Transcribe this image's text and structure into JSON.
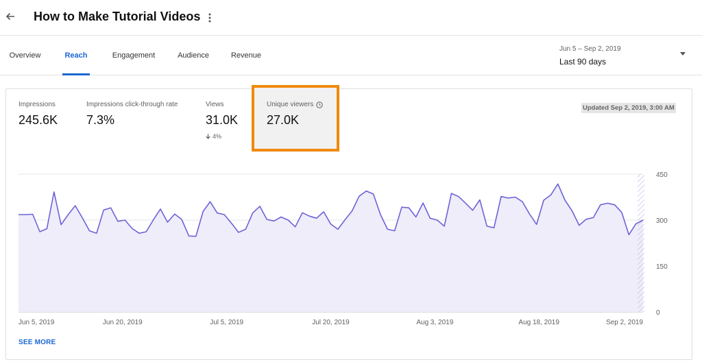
{
  "header": {
    "back_icon": "arrow-back-icon",
    "title": "How to Make Tutorial Videos",
    "more_icon": "more-vert-icon"
  },
  "tabs": [
    {
      "label": "Overview",
      "active": false
    },
    {
      "label": "Reach",
      "active": true
    },
    {
      "label": "Engagement",
      "active": false
    },
    {
      "label": "Audience",
      "active": false
    },
    {
      "label": "Revenue",
      "active": false
    }
  ],
  "date_selector": {
    "range": "Jun 5 – Sep 2, 2019",
    "label": "Last 90 days"
  },
  "metrics": [
    {
      "label": "Impressions",
      "value": "245.6K"
    },
    {
      "label": "Impressions click-through rate",
      "value": "7.3%"
    },
    {
      "label": "Views",
      "value": "31.0K",
      "change": "4%"
    },
    {
      "label": "Unique viewers",
      "value": "27.0K",
      "icon": "clock-icon"
    }
  ],
  "updated": "Updated Sep 2, 2019, 3:00 AM",
  "see_more": "SEE MORE",
  "colors": {
    "accent": "#1a67d2",
    "line": "#6c63d8",
    "fill": "#eeedf9",
    "highlight": "#f08a0c"
  },
  "chart_data": {
    "type": "area",
    "x_tick_labels": [
      "Jun 5, 2019",
      "Jun 20, 2019",
      "Jul 5, 2019",
      "Jul 20, 2019",
      "Aug 3, 2019",
      "Aug 18, 2019",
      "Sep 2, 2019"
    ],
    "y_tick_labels": [
      "450",
      "300",
      "150",
      "0"
    ],
    "ylim": [
      0,
      450
    ],
    "y_axis_side": "right",
    "grid": true,
    "series": [
      {
        "values": [
          318,
          318,
          319,
          262,
          272,
          392,
          285,
          318,
          347,
          307,
          265,
          257,
          333,
          340,
          296,
          300,
          273,
          257,
          262,
          301,
          336,
          293,
          320,
          302,
          248,
          247,
          328,
          360,
          323,
          318,
          290,
          260,
          270,
          323,
          345,
          302,
          297,
          310,
          300,
          278,
          324,
          313,
          306,
          327,
          287,
          270,
          301,
          330,
          378,
          395,
          385,
          318,
          270,
          265,
          342,
          340,
          310,
          356,
          306,
          300,
          280,
          387,
          377,
          355,
          332,
          366,
          280,
          275,
          377,
          372,
          375,
          360,
          320,
          286,
          365,
          382,
          418,
          365,
          330,
          283,
          303,
          308,
          350,
          355,
          350,
          325,
          252,
          288,
          300
        ]
      }
    ]
  }
}
